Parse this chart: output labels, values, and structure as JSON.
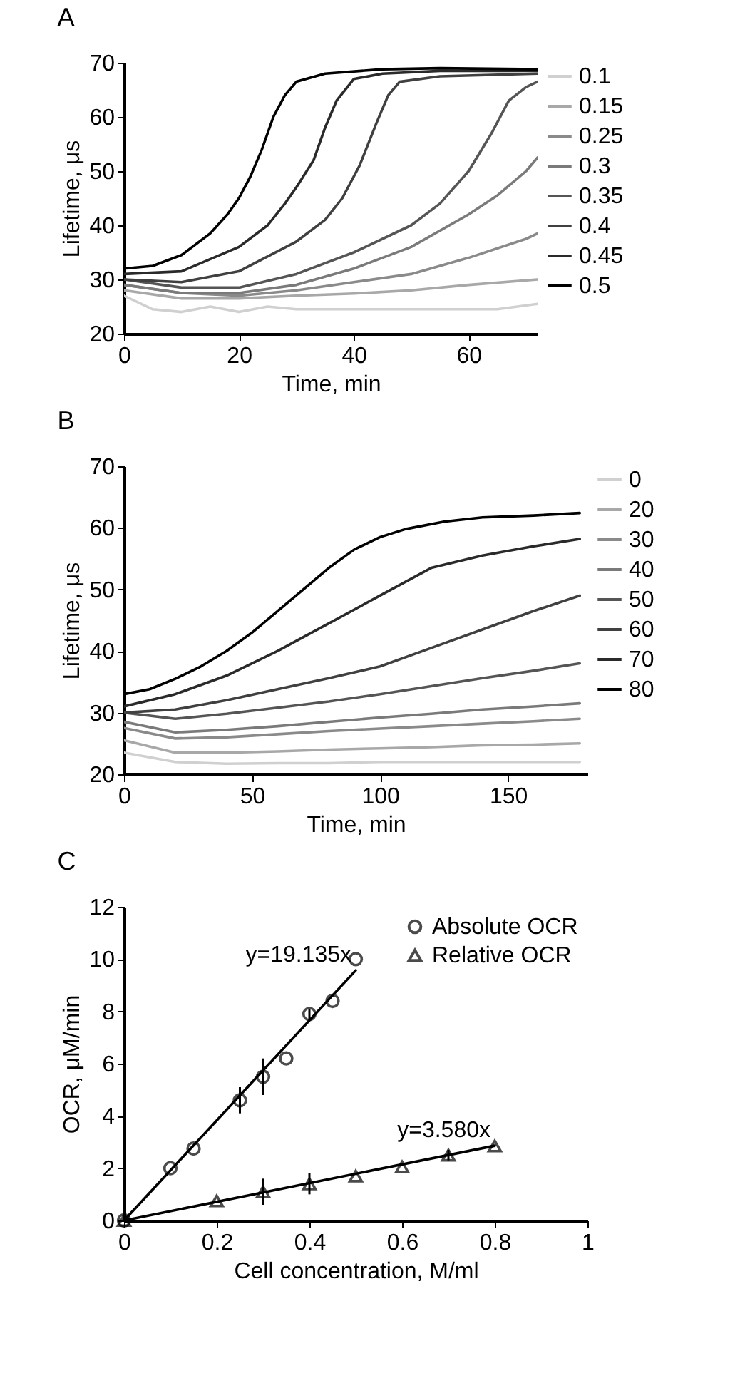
{
  "chart_data": [
    {
      "type": "line",
      "title": "A",
      "xlabel": "Time, min",
      "ylabel": "Lifetime, μs",
      "xlim": [
        0,
        72
      ],
      "xticks": [
        0,
        20,
        40,
        60
      ],
      "ylim": [
        20,
        70
      ],
      "yticks": [
        20,
        30,
        40,
        50,
        60,
        70
      ],
      "legend": "right",
      "series": [
        {
          "name": "0.1",
          "color": "#d0d0d0",
          "x": [
            0,
            5,
            10,
            15,
            20,
            25,
            30,
            40,
            50,
            60,
            65,
            72
          ],
          "values": [
            27,
            24.5,
            24,
            25,
            24,
            25,
            24.5,
            24.5,
            24.5,
            24.5,
            24.5,
            25.5
          ]
        },
        {
          "name": "0.15",
          "color": "#a8a8a8",
          "x": [
            0,
            10,
            20,
            30,
            40,
            50,
            60,
            72
          ],
          "values": [
            28,
            26.5,
            26.5,
            27,
            27.4,
            28,
            29,
            30
          ]
        },
        {
          "name": "0.25",
          "color": "#8a8a8a",
          "x": [
            0,
            10,
            20,
            30,
            40,
            50,
            60,
            70,
            72
          ],
          "values": [
            29,
            27.5,
            27,
            28,
            29.5,
            31,
            34,
            37.5,
            38.5
          ]
        },
        {
          "name": "0.3",
          "color": "#7a7a7a",
          "x": [
            0,
            10,
            20,
            30,
            40,
            50,
            60,
            65,
            70,
            72
          ],
          "values": [
            29,
            27.5,
            27.5,
            29,
            32,
            36,
            42,
            45.5,
            50,
            52.5
          ]
        },
        {
          "name": "0.35",
          "color": "#555555",
          "x": [
            0,
            10,
            20,
            30,
            40,
            50,
            55,
            60,
            64,
            67,
            70,
            72
          ],
          "values": [
            30,
            28.5,
            28.5,
            31,
            35,
            40,
            44,
            50,
            57,
            63,
            65.5,
            66.5
          ]
        },
        {
          "name": "0.4",
          "color": "#404040",
          "x": [
            0,
            10,
            20,
            30,
            35,
            38,
            41,
            44,
            46,
            48,
            55,
            72
          ],
          "values": [
            30,
            29.5,
            31.5,
            37,
            41,
            45,
            51,
            59,
            64,
            66.5,
            67.5,
            68
          ]
        },
        {
          "name": "0.45",
          "color": "#2a2a2a",
          "x": [
            0,
            10,
            20,
            25,
            28,
            30,
            33,
            35,
            37,
            40,
            45,
            55,
            72
          ],
          "values": [
            31,
            31.5,
            36,
            40,
            44,
            47,
            52,
            58,
            63,
            67,
            68,
            68.5,
            68.5
          ]
        },
        {
          "name": "0.5",
          "color": "#000000",
          "x": [
            0,
            5,
            10,
            15,
            18,
            20,
            22,
            24,
            26,
            28,
            30,
            35,
            45,
            55,
            72
          ],
          "values": [
            32,
            32.5,
            34.5,
            38.5,
            42,
            45,
            49,
            54,
            60,
            64,
            66.5,
            68,
            68.8,
            69,
            68.8
          ]
        }
      ]
    },
    {
      "type": "line",
      "title": "B",
      "xlabel": "Time, min",
      "ylabel": "Lifetime, μs",
      "xlim": [
        0,
        181
      ],
      "xticks": [
        0,
        50,
        100,
        150
      ],
      "ylim": [
        20,
        70
      ],
      "yticks": [
        20,
        30,
        40,
        50,
        60,
        70
      ],
      "legend": "right",
      "series": [
        {
          "name": "0",
          "color": "#d0d0d0",
          "x": [
            0,
            20,
            40,
            60,
            80,
            100,
            120,
            140,
            160,
            178
          ],
          "values": [
            23.5,
            22,
            21.7,
            21.8,
            21.8,
            22,
            22,
            22,
            22,
            22
          ]
        },
        {
          "name": "20",
          "color": "#a8a8a8",
          "x": [
            0,
            20,
            40,
            60,
            80,
            100,
            120,
            140,
            160,
            178
          ],
          "values": [
            25.5,
            23.5,
            23.5,
            23.7,
            24,
            24.2,
            24.4,
            24.7,
            24.8,
            25
          ]
        },
        {
          "name": "30",
          "color": "#8a8a8a",
          "x": [
            0,
            20,
            40,
            60,
            80,
            100,
            120,
            140,
            160,
            178
          ],
          "values": [
            27.5,
            25.8,
            26,
            26.5,
            27,
            27.4,
            27.8,
            28.2,
            28.6,
            29
          ]
        },
        {
          "name": "40",
          "color": "#7a7a7a",
          "x": [
            0,
            20,
            40,
            60,
            80,
            100,
            120,
            140,
            160,
            178
          ],
          "values": [
            28.5,
            26.8,
            27.2,
            27.8,
            28.5,
            29.2,
            29.8,
            30.5,
            31,
            31.5
          ]
        },
        {
          "name": "50",
          "color": "#555555",
          "x": [
            0,
            20,
            40,
            60,
            80,
            100,
            120,
            140,
            160,
            178
          ],
          "values": [
            30,
            29,
            29.8,
            30.8,
            31.8,
            33,
            34.3,
            35.6,
            36.8,
            38
          ]
        },
        {
          "name": "60",
          "color": "#404040",
          "x": [
            0,
            20,
            40,
            60,
            80,
            100,
            120,
            140,
            160,
            178
          ],
          "values": [
            30,
            30.5,
            32,
            33.8,
            35.6,
            37.5,
            40.5,
            43.5,
            46.5,
            49
          ]
        },
        {
          "name": "70",
          "color": "#2a2a2a",
          "x": [
            0,
            20,
            40,
            60,
            80,
            100,
            120,
            140,
            160,
            178
          ],
          "values": [
            31,
            33,
            36,
            40,
            44.5,
            49,
            53.5,
            55.5,
            57,
            58.2
          ]
        },
        {
          "name": "80",
          "color": "#000000",
          "x": [
            0,
            10,
            20,
            30,
            40,
            50,
            60,
            70,
            80,
            90,
            100,
            110,
            125,
            140,
            160,
            178
          ],
          "values": [
            33,
            33.8,
            35.5,
            37.5,
            40,
            43,
            46.5,
            50,
            53.5,
            56.5,
            58.5,
            59.8,
            61,
            61.7,
            62,
            62.4
          ]
        }
      ]
    },
    {
      "type": "scatter",
      "title": "C",
      "xlabel": "Cell concentration, M/ml",
      "ylabel": "OCR, μM/min",
      "xlim": [
        0,
        1
      ],
      "xticks": [
        0,
        0.2,
        0.4,
        0.6,
        0.8,
        1
      ],
      "ylim": [
        0,
        12
      ],
      "yticks": [
        0,
        2,
        4,
        6,
        8,
        10,
        12
      ],
      "legend": "top right",
      "series": [
        {
          "name": "Absolute OCR",
          "color": "#000000",
          "marker": "circle",
          "x": [
            0,
            0.1,
            0.15,
            0.25,
            0.3,
            0.35,
            0.4,
            0.45,
            0.5
          ],
          "values": [
            0,
            2,
            2.75,
            4.6,
            5.5,
            6.2,
            7.9,
            8.4,
            10
          ],
          "errors": [
            null,
            null,
            null,
            0.5,
            0.7,
            null,
            0.2,
            null,
            null
          ]
        },
        {
          "name": "Relative OCR",
          "color": "#000000",
          "marker": "triangle",
          "x": [
            0,
            0.2,
            0.3,
            0.4,
            0.5,
            0.6,
            0.7,
            0.8
          ],
          "values": [
            0,
            0.75,
            1.1,
            1.4,
            1.7,
            2.05,
            2.5,
            2.85
          ],
          "errors": [
            null,
            null,
            0.5,
            0.4,
            null,
            null,
            0.2,
            null
          ]
        },
        {
          "type": "line",
          "name": "y=19.135x",
          "color": "#000000",
          "x": [
            0,
            0.5
          ],
          "values": [
            0,
            9.57
          ]
        },
        {
          "type": "line",
          "name": "y=3.580x",
          "color": "#000000",
          "x": [
            0,
            0.8
          ],
          "values": [
            0,
            2.86
          ]
        }
      ]
    }
  ]
}
